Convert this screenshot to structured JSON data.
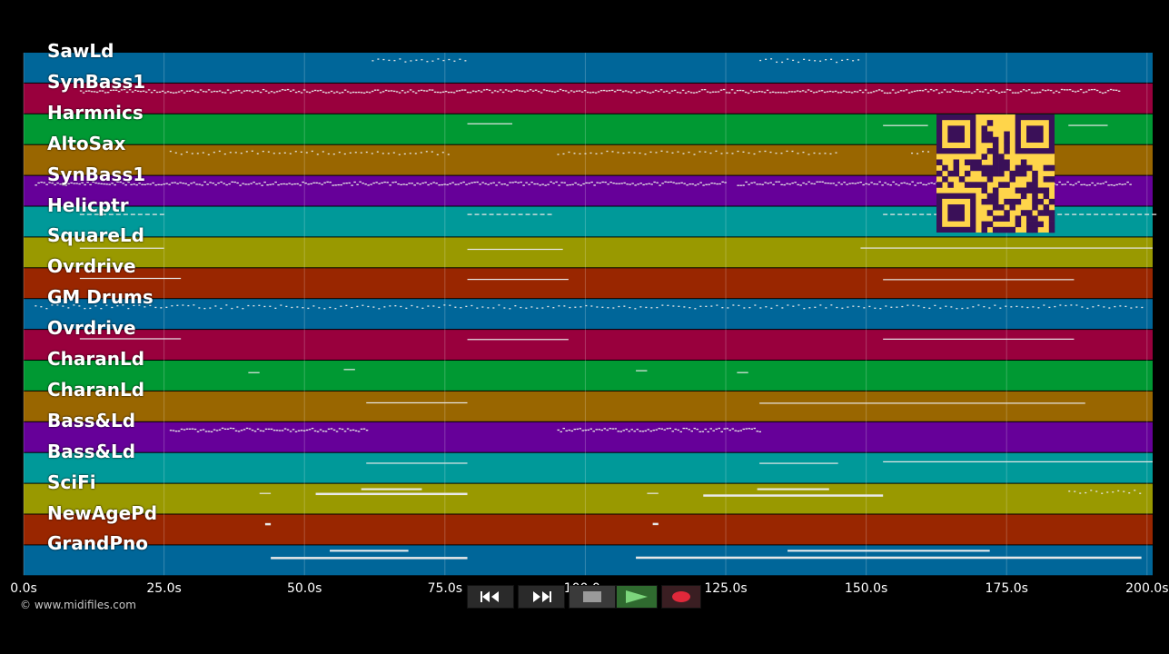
{
  "tracks": [
    {
      "name": "SawLd",
      "color": "#006699"
    },
    {
      "name": "SynBass1",
      "color": "#99003d"
    },
    {
      "name": "Harmnics",
      "color": "#009933"
    },
    {
      "name": "AltoSax",
      "color": "#996600"
    },
    {
      "name": "SynBass1",
      "color": "#660099"
    },
    {
      "name": "Helicptr",
      "color": "#009999"
    },
    {
      "name": "SquareLd",
      "color": "#999900"
    },
    {
      "name": "Ovrdrive",
      "color": "#992600"
    },
    {
      "name": "GM Drums",
      "color": "#006699"
    },
    {
      "name": "Ovrdrive",
      "color": "#99003d"
    },
    {
      "name": "CharanLd",
      "color": "#009933"
    },
    {
      "name": "CharanLd",
      "color": "#996600"
    },
    {
      "name": "Bass&Ld",
      "color": "#660099"
    },
    {
      "name": "Bass&Ld",
      "color": "#009999"
    },
    {
      "name": "SciFi",
      "color": "#999900"
    },
    {
      "name": "NewAgePd",
      "color": "#992600"
    },
    {
      "name": "GrandPno",
      "color": "#006699"
    }
  ],
  "timeline": {
    "unit": "s",
    "max": 201,
    "ticks": [
      {
        "value": 0,
        "label": "0.0s"
      },
      {
        "value": 25,
        "label": "25.0s"
      },
      {
        "value": 50,
        "label": "50.0s"
      },
      {
        "value": 75,
        "label": "75.0s"
      },
      {
        "value": 100,
        "label": "100.0s"
      },
      {
        "value": 125,
        "label": "125.0s"
      },
      {
        "value": 150,
        "label": "150.0s"
      },
      {
        "value": 175,
        "label": "175.0s"
      },
      {
        "value": 200,
        "label": "200.0s"
      }
    ]
  },
  "copyright": "© www.midifiles.com",
  "transport": {
    "rewind_icon": "rewind-icon",
    "forward_icon": "fast-forward-icon",
    "stop_icon": "stop-icon",
    "play_icon": "play-icon",
    "record_icon": "record-icon",
    "play_color": "#7cd67c",
    "record_color": "#e0283a"
  },
  "notes": [
    {
      "track": 0,
      "segments": [
        [
          62,
          79,
          "dots"
        ],
        [
          131,
          149,
          "dots"
        ]
      ]
    },
    {
      "track": 1,
      "segments": [
        [
          10,
          195,
          "dense"
        ]
      ]
    },
    {
      "track": 2,
      "segments": [
        [
          79,
          87,
          "line"
        ],
        [
          153,
          161,
          "line"
        ],
        [
          186,
          193,
          "line"
        ]
      ]
    },
    {
      "track": 3,
      "segments": [
        [
          26,
          76,
          "dots"
        ],
        [
          95,
          145,
          "dots"
        ],
        [
          158,
          161,
          "dots"
        ]
      ]
    },
    {
      "track": 4,
      "segments": [
        [
          2,
          125,
          "dense"
        ],
        [
          127,
          197,
          "dense"
        ]
      ]
    },
    {
      "track": 5,
      "segments": [
        [
          10,
          25,
          "dash"
        ],
        [
          79,
          94,
          "dash"
        ],
        [
          153,
          201,
          "dash"
        ]
      ]
    },
    {
      "track": 6,
      "segments": [
        [
          10,
          25,
          "line"
        ],
        [
          79,
          96,
          "line"
        ],
        [
          149,
          201,
          "line"
        ]
      ]
    },
    {
      "track": 7,
      "segments": [
        [
          10,
          28,
          "line"
        ],
        [
          79,
          97,
          "line"
        ],
        [
          153,
          187,
          "line"
        ]
      ]
    },
    {
      "track": 8,
      "segments": [
        [
          2,
          199,
          "dots"
        ]
      ]
    },
    {
      "track": 9,
      "segments": [
        [
          10,
          28,
          "line"
        ],
        [
          79,
          97,
          "line"
        ],
        [
          153,
          187,
          "line"
        ]
      ]
    },
    {
      "track": 10,
      "segments": [
        [
          40,
          42,
          "line"
        ],
        [
          57,
          59,
          "line"
        ],
        [
          109,
          111,
          "line"
        ],
        [
          127,
          129,
          "line"
        ]
      ]
    },
    {
      "track": 11,
      "segments": [
        [
          61,
          79,
          "line"
        ],
        [
          131,
          189,
          "line"
        ]
      ]
    },
    {
      "track": 12,
      "segments": [
        [
          26,
          61,
          "dense"
        ],
        [
          95,
          131,
          "dense"
        ]
      ]
    },
    {
      "track": 13,
      "segments": [
        [
          61,
          79,
          "line"
        ],
        [
          131,
          145,
          "line"
        ],
        [
          153,
          201,
          "line"
        ]
      ]
    },
    {
      "track": 14,
      "segments": [
        [
          42,
          44,
          "line"
        ],
        [
          52,
          79,
          "thick"
        ],
        [
          111,
          113,
          "line"
        ],
        [
          121,
          153,
          "thick"
        ],
        [
          186,
          199,
          "dots"
        ]
      ]
    },
    {
      "track": 15,
      "segments": [
        [
          43,
          44,
          "thick"
        ],
        [
          112,
          113,
          "thick"
        ]
      ]
    },
    {
      "track": 16,
      "segments": [
        [
          44,
          79,
          "thick"
        ],
        [
          109,
          199,
          "thick"
        ]
      ]
    }
  ]
}
